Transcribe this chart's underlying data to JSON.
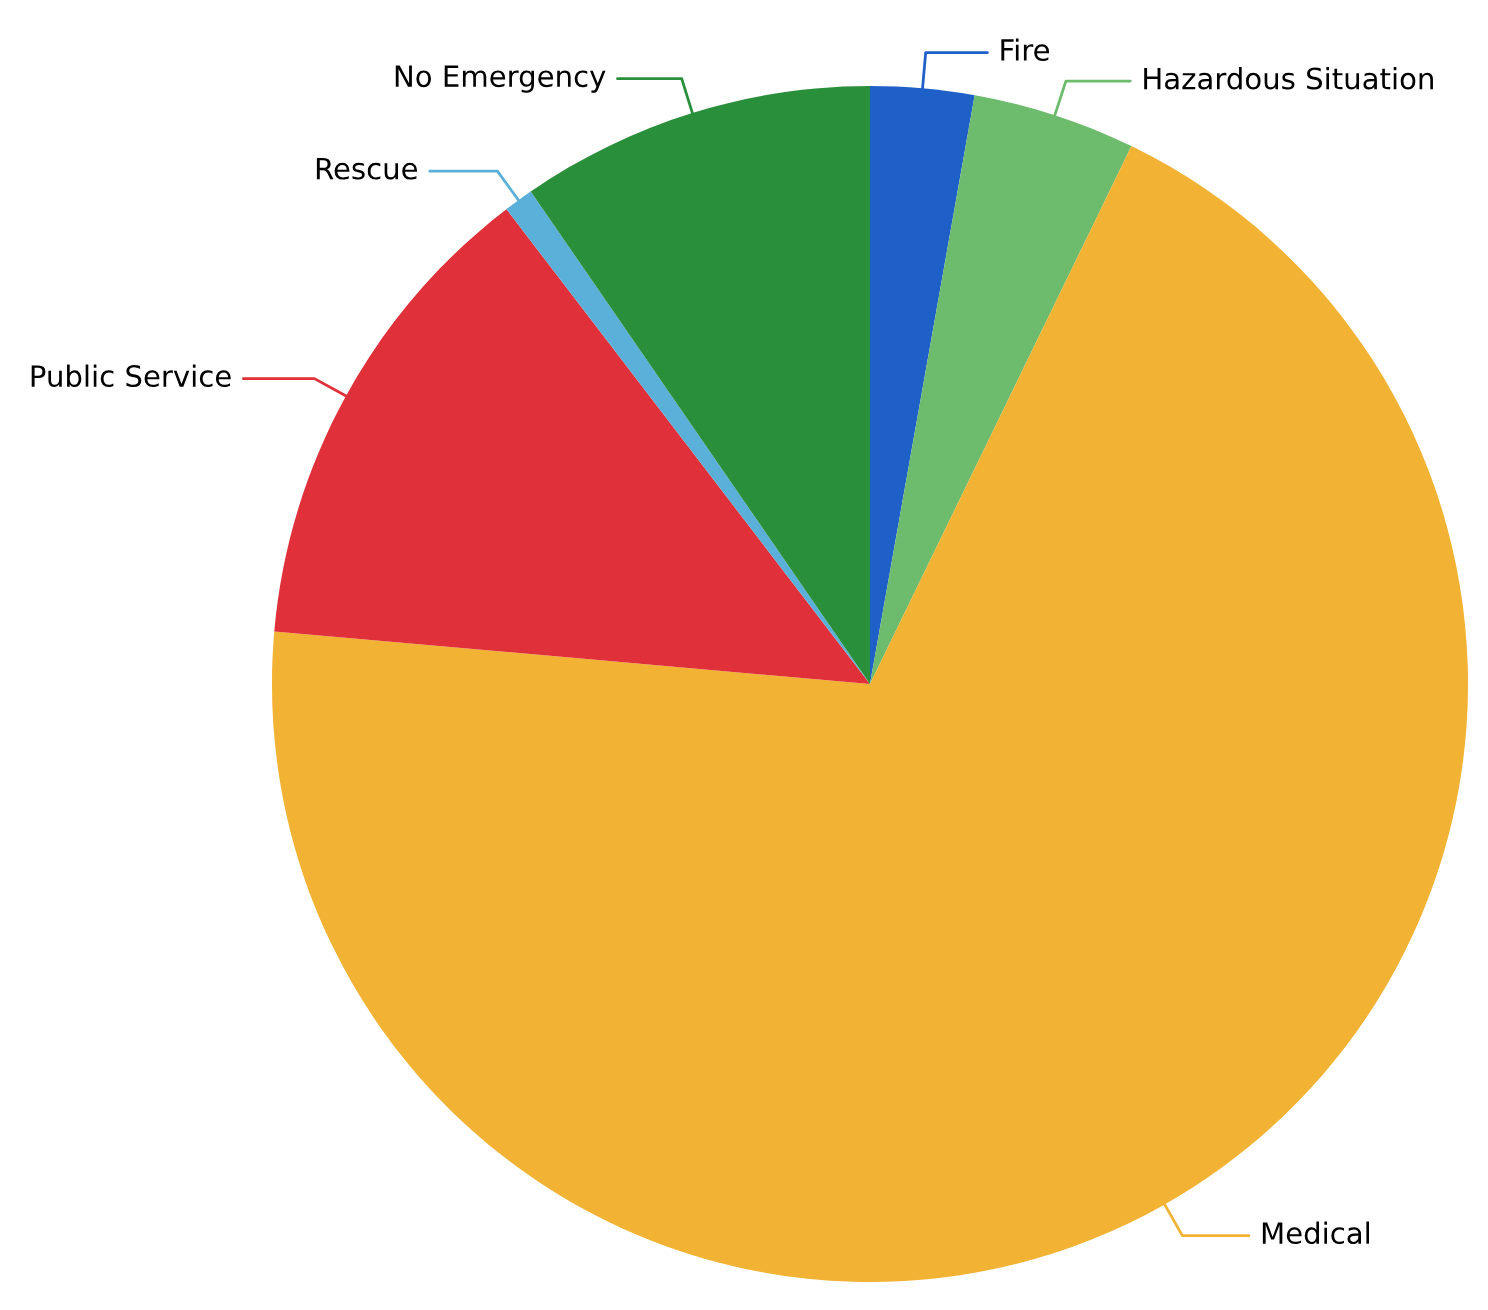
{
  "chart_data": {
    "type": "pie",
    "categories": [
      "Fire",
      "Hazardous Situation",
      "Medical",
      "Public Service",
      "Rescue",
      "No Emergency"
    ],
    "values": [
      2.8,
      4.4,
      69.2,
      13.2,
      0.8,
      9.6
    ],
    "colors": [
      "#1f5fc8",
      "#6dbb6d",
      "#f2b233",
      "#e0303a",
      "#5ab0d8",
      "#2a8f3a"
    ],
    "legend": false
  }
}
